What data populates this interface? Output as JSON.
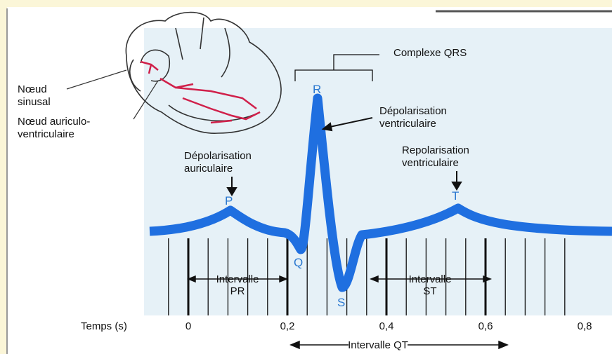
{
  "labels": {
    "qrs_complex": "Complexe QRS",
    "r": "R",
    "p": "P",
    "q": "Q",
    "s": "S",
    "t": "T",
    "ventricular_depolarization": [
      "Dépolarisation",
      "ventriculaire"
    ],
    "sinus_node": [
      "Nœud",
      "sinusal"
    ],
    "av_node": [
      "Nœud auriculo-",
      "ventriculaire"
    ],
    "atrial_depolarization": [
      "Dépolarisation",
      "auriculaire"
    ],
    "ventricular_repolarization": [
      "Repolarisation",
      "ventriculaire"
    ]
  },
  "time_axis": {
    "label": "Temps (s)",
    "ticks": [
      "0",
      "0,2",
      "0,4",
      "0,6",
      "0,8"
    ]
  },
  "intervals": {
    "pr": [
      "Intervalle",
      "PR"
    ],
    "st": [
      "Intervalle",
      "ST"
    ],
    "qt": "Intervalle QT"
  }
}
